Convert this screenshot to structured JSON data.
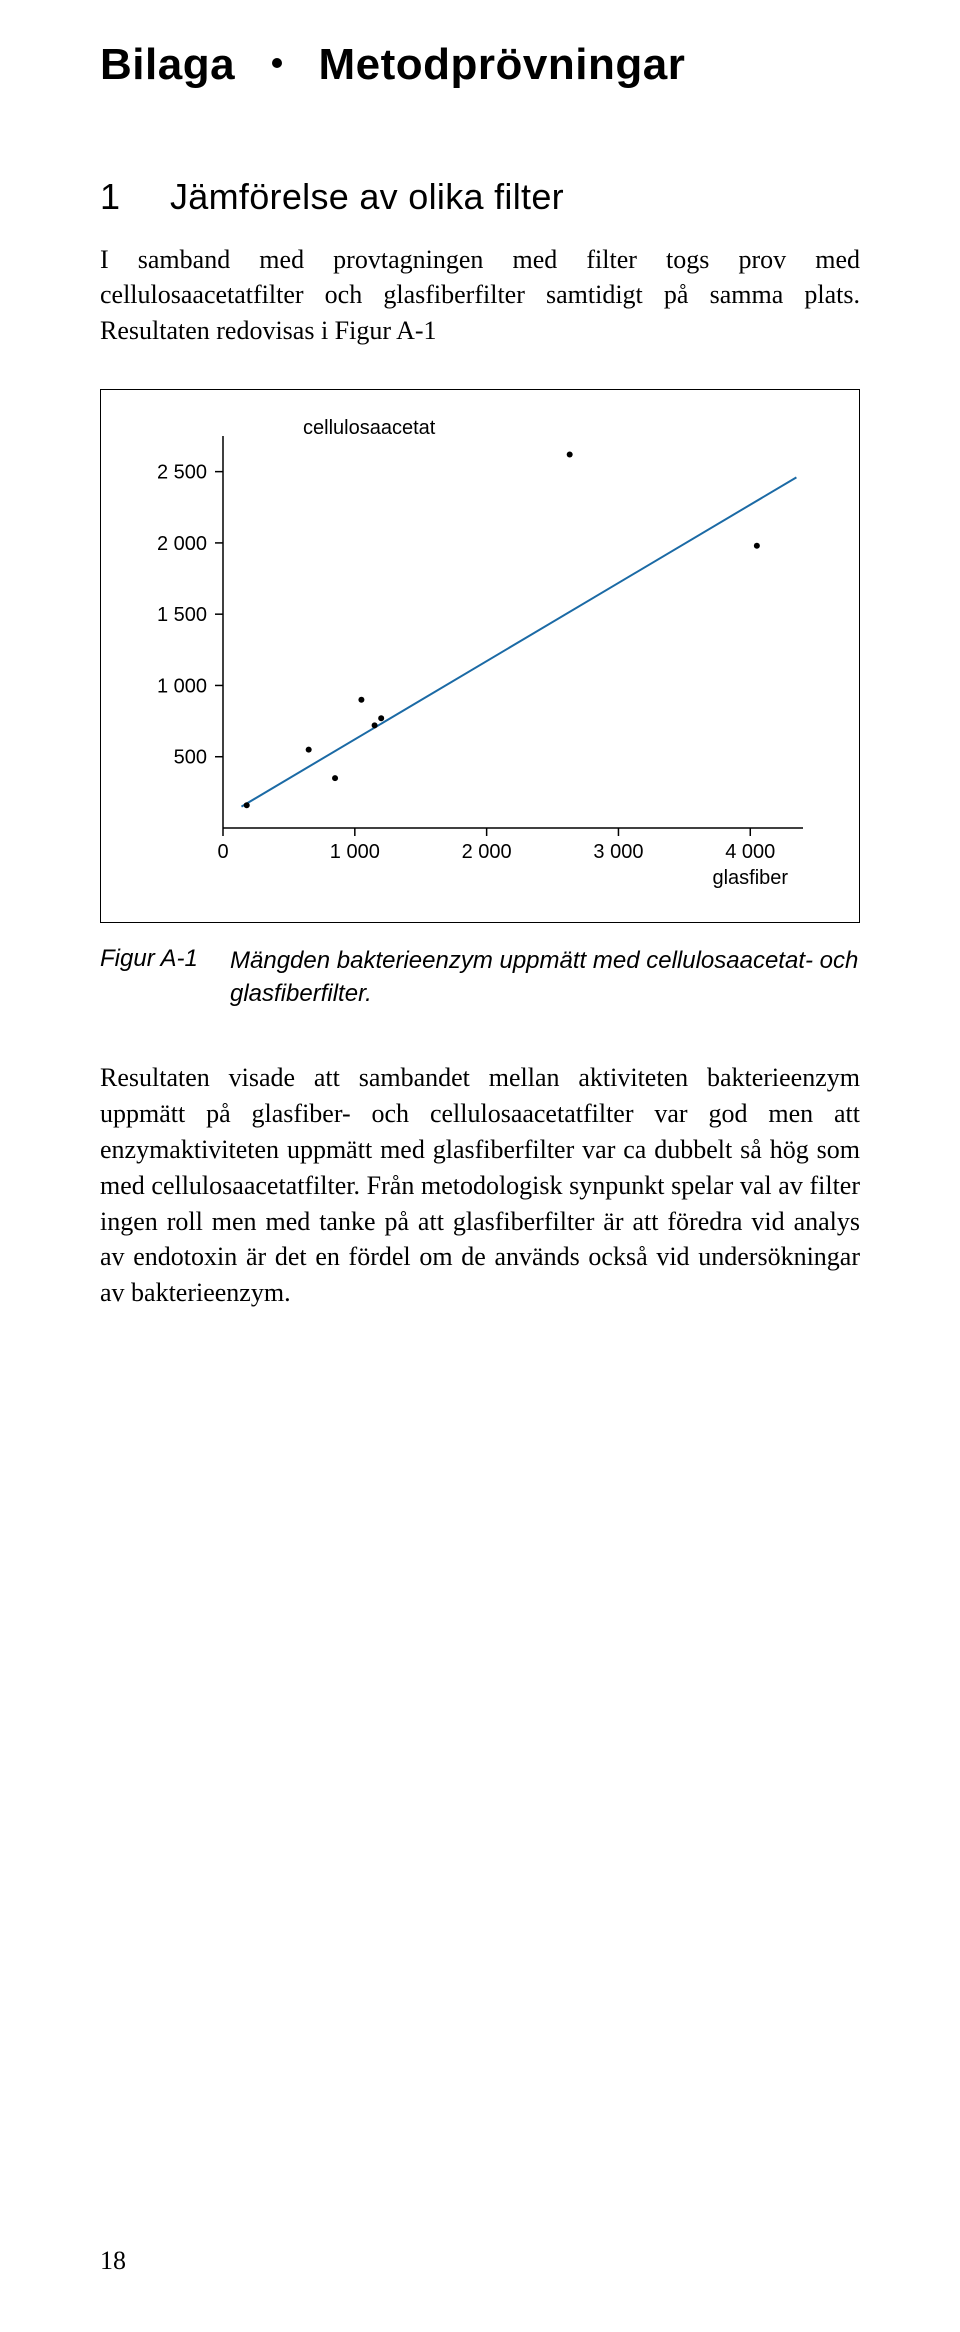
{
  "heading": {
    "appendix": "Bilaga",
    "title": "Metodprövningar"
  },
  "section1": {
    "num": "1",
    "title": "Jämförelse av olika filter",
    "intro": "I samband med provtagningen med filter togs prov med cellulosaacetatfilter och glasfiberfilter samtidigt på samma plats. Resultaten redovisas i Figur A-1"
  },
  "chart": {
    "type": "scatter",
    "series_label": "cellulosaacetat",
    "x_axis_label": "glasfiber",
    "y_ticks": [
      500,
      1000,
      1500,
      2000,
      2500
    ],
    "y_tick_labels": [
      "500",
      "1 000",
      "1 500",
      "2 000",
      "2 500"
    ],
    "x_ticks": [
      0,
      1000,
      2000,
      3000,
      4000
    ],
    "x_tick_labels": [
      "0",
      "1 000",
      "2 000",
      "3 000",
      "4 000"
    ],
    "xlim": [
      0,
      4400
    ],
    "ylim": [
      0,
      2750
    ],
    "points": [
      {
        "x": 180,
        "y": 160
      },
      {
        "x": 650,
        "y": 550
      },
      {
        "x": 850,
        "y": 350
      },
      {
        "x": 1050,
        "y": 900
      },
      {
        "x": 1150,
        "y": 720
      },
      {
        "x": 1200,
        "y": 770
      },
      {
        "x": 2630,
        "y": 2620
      },
      {
        "x": 4050,
        "y": 1980
      }
    ],
    "trend_line": {
      "x1": 140,
      "y1": 150,
      "x2": 4350,
      "y2": 2460
    },
    "line_color": "#1b6aa5",
    "line_width": 2,
    "point_color": "#000000",
    "point_radius": 3,
    "axis_color": "#000000",
    "tick_len": 8,
    "label_fontsize": 20,
    "background_color": "#ffffff"
  },
  "caption": {
    "label": "Figur A-1",
    "text": "Mängden bakterieenzym uppmätt med cellulosaacetat- och glasfiberfilter."
  },
  "results_text": "Resultaten visade att sambandet mellan aktiviteten bakterieenzym uppmätt på glasfiber- och cellulosaacetatfilter var god men att enzymaktiviteten uppmätt med glasfiberfilter var ca dubbelt så hög som med cellulosaacetatfilter. Från metodologisk synpunkt spelar val av filter ingen roll men med tanke på att glasfiberfilter är att föredra vid analys av endotoxin är det en fördel om de används också vid undersökningar av bakterieenzym.",
  "page_number": "18"
}
